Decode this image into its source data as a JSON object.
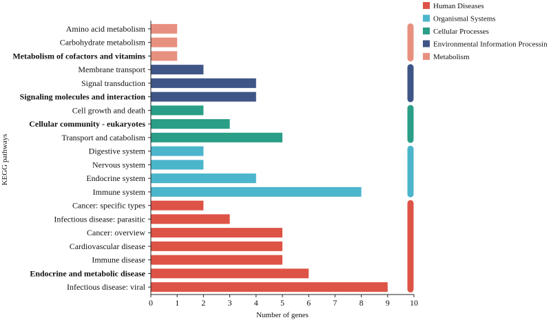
{
  "chart_data": {
    "type": "bar",
    "orientation": "horizontal",
    "xlabel": "Number of genes",
    "ylabel": "KEGG pathways",
    "xlim": [
      0,
      10
    ],
    "xticks": [
      "0",
      "1",
      "2",
      "3",
      "4",
      "5",
      "6",
      "7",
      "8",
      "9",
      "10"
    ],
    "legend_position": "top-right",
    "groups": [
      {
        "name": "Metabolism",
        "color": "#E8907F"
      },
      {
        "name": "Environmental Information Processin",
        "color": "#3F5587"
      },
      {
        "name": "Cellular Processes",
        "color": "#2A9E86"
      },
      {
        "name": "Organismal Systems",
        "color": "#4BB5CB"
      },
      {
        "name": "Human Diseases",
        "color": "#DD5346"
      }
    ],
    "legend_order": [
      "Human Diseases",
      "Organismal Systems",
      "Cellular Processes",
      "Environmental Information Processin",
      "Metabolism"
    ],
    "categories": [
      {
        "label": "Amino acid metabolism",
        "value": 1,
        "group": "Metabolism",
        "bold": false
      },
      {
        "label": "Carbohydrate metabolism",
        "value": 1,
        "group": "Metabolism",
        "bold": false
      },
      {
        "label": "Metabolism of cofactors and vitamins",
        "value": 1,
        "group": "Metabolism",
        "bold": true
      },
      {
        "label": "Membrane transport",
        "value": 2,
        "group": "Environmental Information Processin",
        "bold": false
      },
      {
        "label": "Signal transduction",
        "value": 4,
        "group": "Environmental Information Processin",
        "bold": false
      },
      {
        "label": "Signaling molecules and interaction",
        "value": 4,
        "group": "Environmental Information Processin",
        "bold": true
      },
      {
        "label": "Cell growth and death",
        "value": 2,
        "group": "Cellular Processes",
        "bold": false
      },
      {
        "label": "Cellular community - eukaryotes",
        "value": 3,
        "group": "Cellular Processes",
        "bold": true
      },
      {
        "label": "Transport and catabolism",
        "value": 5,
        "group": "Cellular Processes",
        "bold": false
      },
      {
        "label": "Digestive system",
        "value": 2,
        "group": "Organismal Systems",
        "bold": false
      },
      {
        "label": "Nervous system",
        "value": 2,
        "group": "Organismal Systems",
        "bold": false
      },
      {
        "label": "Endocrine system",
        "value": 4,
        "group": "Organismal Systems",
        "bold": false
      },
      {
        "label": "Immune system",
        "value": 8,
        "group": "Organismal Systems",
        "bold": false
      },
      {
        "label": "Cancer: specific types",
        "value": 2,
        "group": "Human Diseases",
        "bold": false
      },
      {
        "label": "Infectious disease: parasitic",
        "value": 3,
        "group": "Human Diseases",
        "bold": false
      },
      {
        "label": "Cancer: overview",
        "value": 5,
        "group": "Human Diseases",
        "bold": false
      },
      {
        "label": "Cardiovascular disease",
        "value": 5,
        "group": "Human Diseases",
        "bold": false
      },
      {
        "label": "Immune disease",
        "value": 5,
        "group": "Human Diseases",
        "bold": false
      },
      {
        "label": "Endocrine and metabolic disease",
        "value": 6,
        "group": "Human Diseases",
        "bold": true
      },
      {
        "label": "Infectious disease: viral",
        "value": 9,
        "group": "Human Diseases",
        "bold": false
      }
    ]
  }
}
